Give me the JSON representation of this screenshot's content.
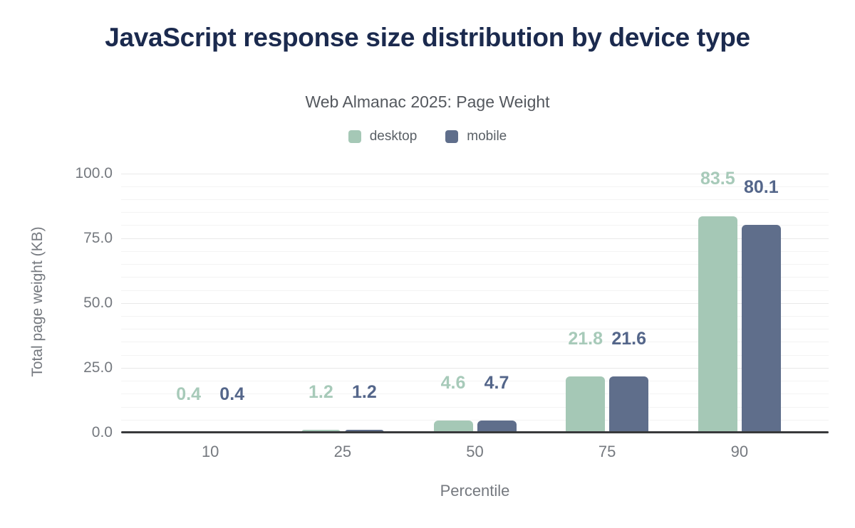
{
  "chart_data": {
    "type": "bar",
    "title": "JavaScript response size distribution by device type",
    "subtitle": "Web Almanac 2025: Page Weight",
    "xlabel": "Percentile",
    "ylabel": "Total page weight (KB)",
    "categories": [
      "10",
      "25",
      "50",
      "75",
      "90"
    ],
    "series": [
      {
        "name": "desktop",
        "color": "#a5c8b6",
        "label_color": "#a7cab9",
        "values": [
          0.4,
          1.2,
          4.6,
          21.8,
          83.5
        ]
      },
      {
        "name": "mobile",
        "color": "#5f6e8b",
        "label_color": "#54668a",
        "values": [
          0.4,
          1.2,
          4.7,
          21.6,
          80.1
        ]
      }
    ],
    "ylim": [
      0,
      100
    ],
    "ytick_values": [
      0,
      25,
      50,
      75,
      100
    ],
    "ytick_labels": [
      "0.0",
      "25.0",
      "50.0",
      "75.0",
      "100.0"
    ],
    "grid": {
      "minor_step": 5,
      "minor_color": "#f3f3f3",
      "major_color": "#e9e9e9"
    },
    "legend_position": "top",
    "value_labels": true
  },
  "colors": {
    "title_color": "#1b2a4e",
    "subtitle_color": "#54585e",
    "axis_text": "#75797f",
    "axis_line": "#38393b",
    "legend_text": "#5a6066"
  }
}
